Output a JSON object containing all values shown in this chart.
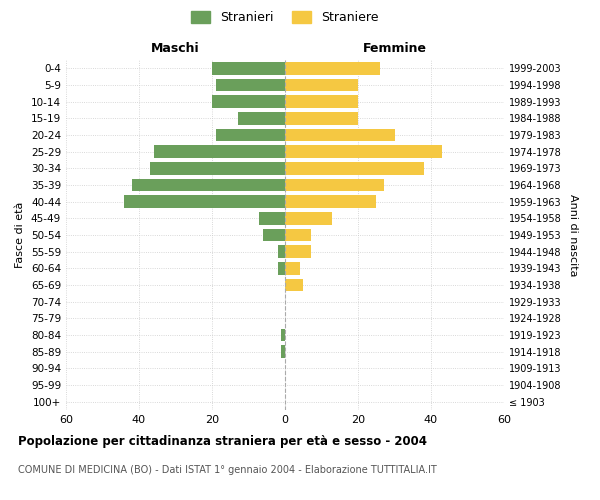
{
  "age_groups": [
    "0-4",
    "5-9",
    "10-14",
    "15-19",
    "20-24",
    "25-29",
    "30-34",
    "35-39",
    "40-44",
    "45-49",
    "50-54",
    "55-59",
    "60-64",
    "65-69",
    "70-74",
    "75-79",
    "80-84",
    "85-89",
    "90-94",
    "95-99",
    "100+"
  ],
  "birth_years": [
    "1999-2003",
    "1994-1998",
    "1989-1993",
    "1984-1988",
    "1979-1983",
    "1974-1978",
    "1969-1973",
    "1964-1968",
    "1959-1963",
    "1954-1958",
    "1949-1953",
    "1944-1948",
    "1939-1943",
    "1934-1938",
    "1929-1933",
    "1924-1928",
    "1919-1923",
    "1914-1918",
    "1909-1913",
    "1904-1908",
    "≤ 1903"
  ],
  "males": [
    20,
    19,
    20,
    13,
    19,
    36,
    37,
    42,
    44,
    7,
    6,
    2,
    2,
    0,
    0,
    0,
    1,
    1,
    0,
    0,
    0
  ],
  "females": [
    26,
    20,
    20,
    20,
    30,
    43,
    38,
    27,
    25,
    13,
    7,
    7,
    4,
    5,
    0,
    0,
    0,
    0,
    0,
    0,
    0
  ],
  "male_color": "#6a9f5b",
  "female_color": "#f5c842",
  "grid_color": "#cccccc",
  "title": "Popolazione per cittadinanza straniera per età e sesso - 2004",
  "subtitle": "COMUNE DI MEDICINA (BO) - Dati ISTAT 1° gennaio 2004 - Elaborazione TUTTITALIA.IT",
  "xlabel_left": "Maschi",
  "xlabel_right": "Femmine",
  "ylabel_left": "Fasce di età",
  "ylabel_right": "Anni di nascita",
  "legend_male": "Stranieri",
  "legend_female": "Straniere",
  "xlim": 60,
  "bar_height": 0.75
}
